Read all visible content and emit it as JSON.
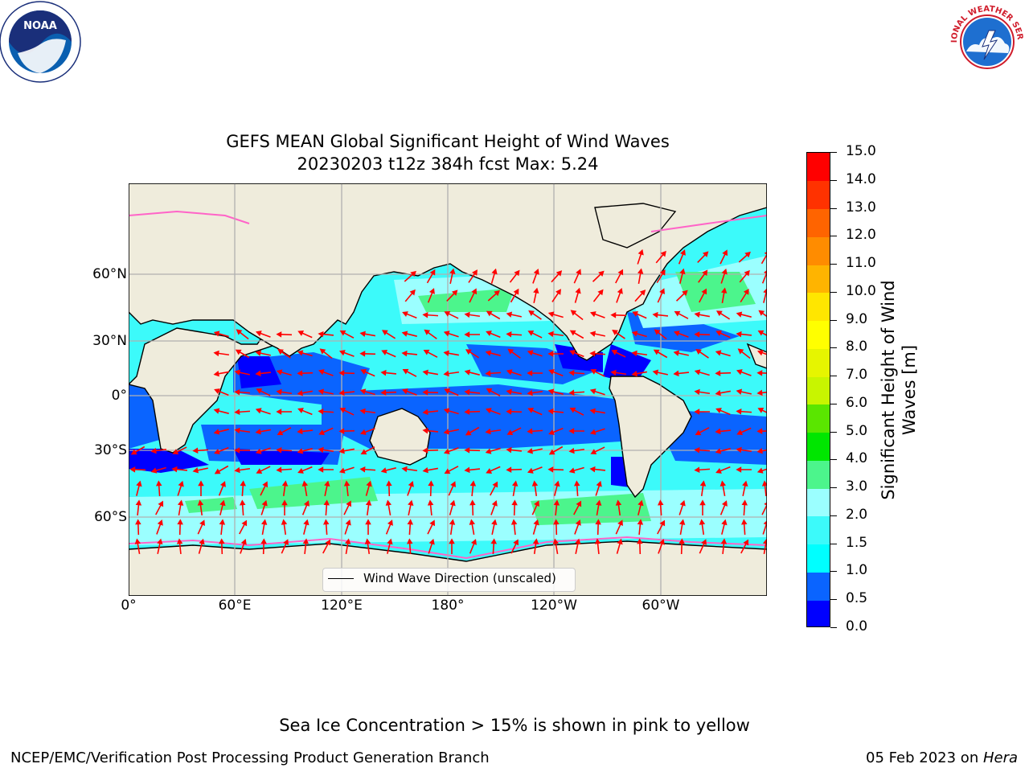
{
  "title": {
    "line1": "GEFS MEAN Global Significant Height of Wind Waves",
    "line2": "20230203 t12z 384h fcst   Max: 5.24"
  },
  "logos": {
    "left": {
      "name": "NOAA",
      "ring_text": "NATIONAL OCEANIC AND ATMOSPHERIC ADMINISTRATION · U.S. DEPARTMENT OF COMMERCE"
    },
    "right": {
      "name": "NATIONAL WEATHER SERVICE"
    }
  },
  "map": {
    "lat_labels": [
      "60°N",
      "30°N",
      "0°",
      "30°S",
      "60°S"
    ],
    "lon_labels": [
      "0°",
      "60°E",
      "120°E",
      "180°",
      "120°W",
      "60°W"
    ],
    "legend": {
      "label": "Wind Wave Direction (unscaled)"
    },
    "colors": {
      "land": "#efecdc",
      "arrows": "#ff0000",
      "grid": "#b0b0b0"
    }
  },
  "colorbar": {
    "label_line1": "Significant Height of Wind",
    "label_line2": "Waves [m]",
    "ticks": [
      "0.0",
      "0.5",
      "1.0",
      "1.5",
      "2.0",
      "3.0",
      "4.0",
      "5.0",
      "6.0",
      "7.0",
      "8.0",
      "9.0",
      "10.0",
      "11.0",
      "12.0",
      "13.0",
      "14.0",
      "15.0"
    ],
    "colors": [
      "#0000ff",
      "#0a64ff",
      "#00ffff",
      "#3cfafa",
      "#9bffff",
      "#4cf58c",
      "#00e600",
      "#5ae600",
      "#c8f500",
      "#e6f500",
      "#ffff00",
      "#ffe600",
      "#ffb400",
      "#ff8c00",
      "#ff6400",
      "#ff3200",
      "#ff0000"
    ]
  },
  "footer": {
    "sea_ice_note": "Sea Ice Concentration > 15% is shown in pink to yellow",
    "branch": "NCEP/EMC/Verification Post Processing Product Generation Branch",
    "date": "05 Feb 2023",
    "on": " on ",
    "machine": "Hera"
  }
}
